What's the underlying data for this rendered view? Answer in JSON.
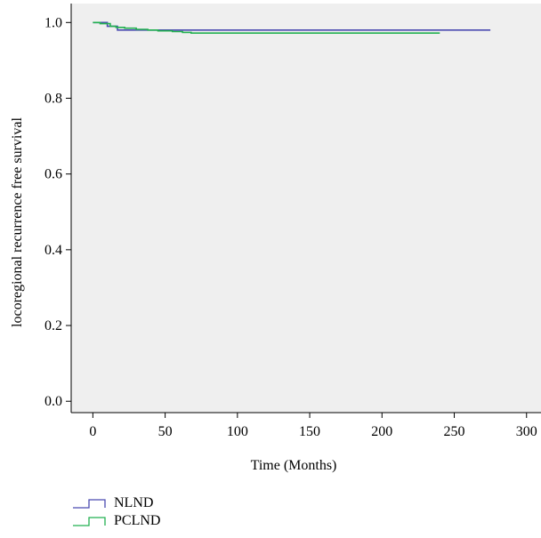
{
  "chart_data": {
    "type": "line",
    "step": true,
    "xlabel": "Time (Months)",
    "ylabel": "locoregional recurrence free survival",
    "xlim": [
      -15,
      310
    ],
    "ylim": [
      -0.03,
      1.05
    ],
    "xticks": [
      0,
      50,
      100,
      150,
      200,
      250,
      300
    ],
    "xtick_labels": [
      "0",
      "50",
      "100",
      "150",
      "200",
      "250",
      "300"
    ],
    "yticks": [
      0.0,
      0.2,
      0.4,
      0.6,
      0.8,
      1.0
    ],
    "ytick_labels": [
      "0.0",
      "0.2",
      "0.4",
      "0.6",
      "0.8",
      "1.0"
    ],
    "grid": false,
    "legend_position": "bottom-left",
    "series": [
      {
        "name": "NLND",
        "color": "#4a4ab0",
        "x": [
          0,
          10,
          17,
          55,
          275
        ],
        "y": [
          1.0,
          0.99,
          0.98,
          0.98,
          0.98
        ]
      },
      {
        "name": "PCLND",
        "color": "#22b050",
        "x": [
          0,
          5,
          12,
          16,
          22,
          30,
          38,
          45,
          55,
          62,
          68,
          240
        ],
        "y": [
          1.0,
          0.997,
          0.99,
          0.987,
          0.985,
          0.982,
          0.98,
          0.978,
          0.976,
          0.974,
          0.972,
          0.972
        ]
      }
    ]
  }
}
